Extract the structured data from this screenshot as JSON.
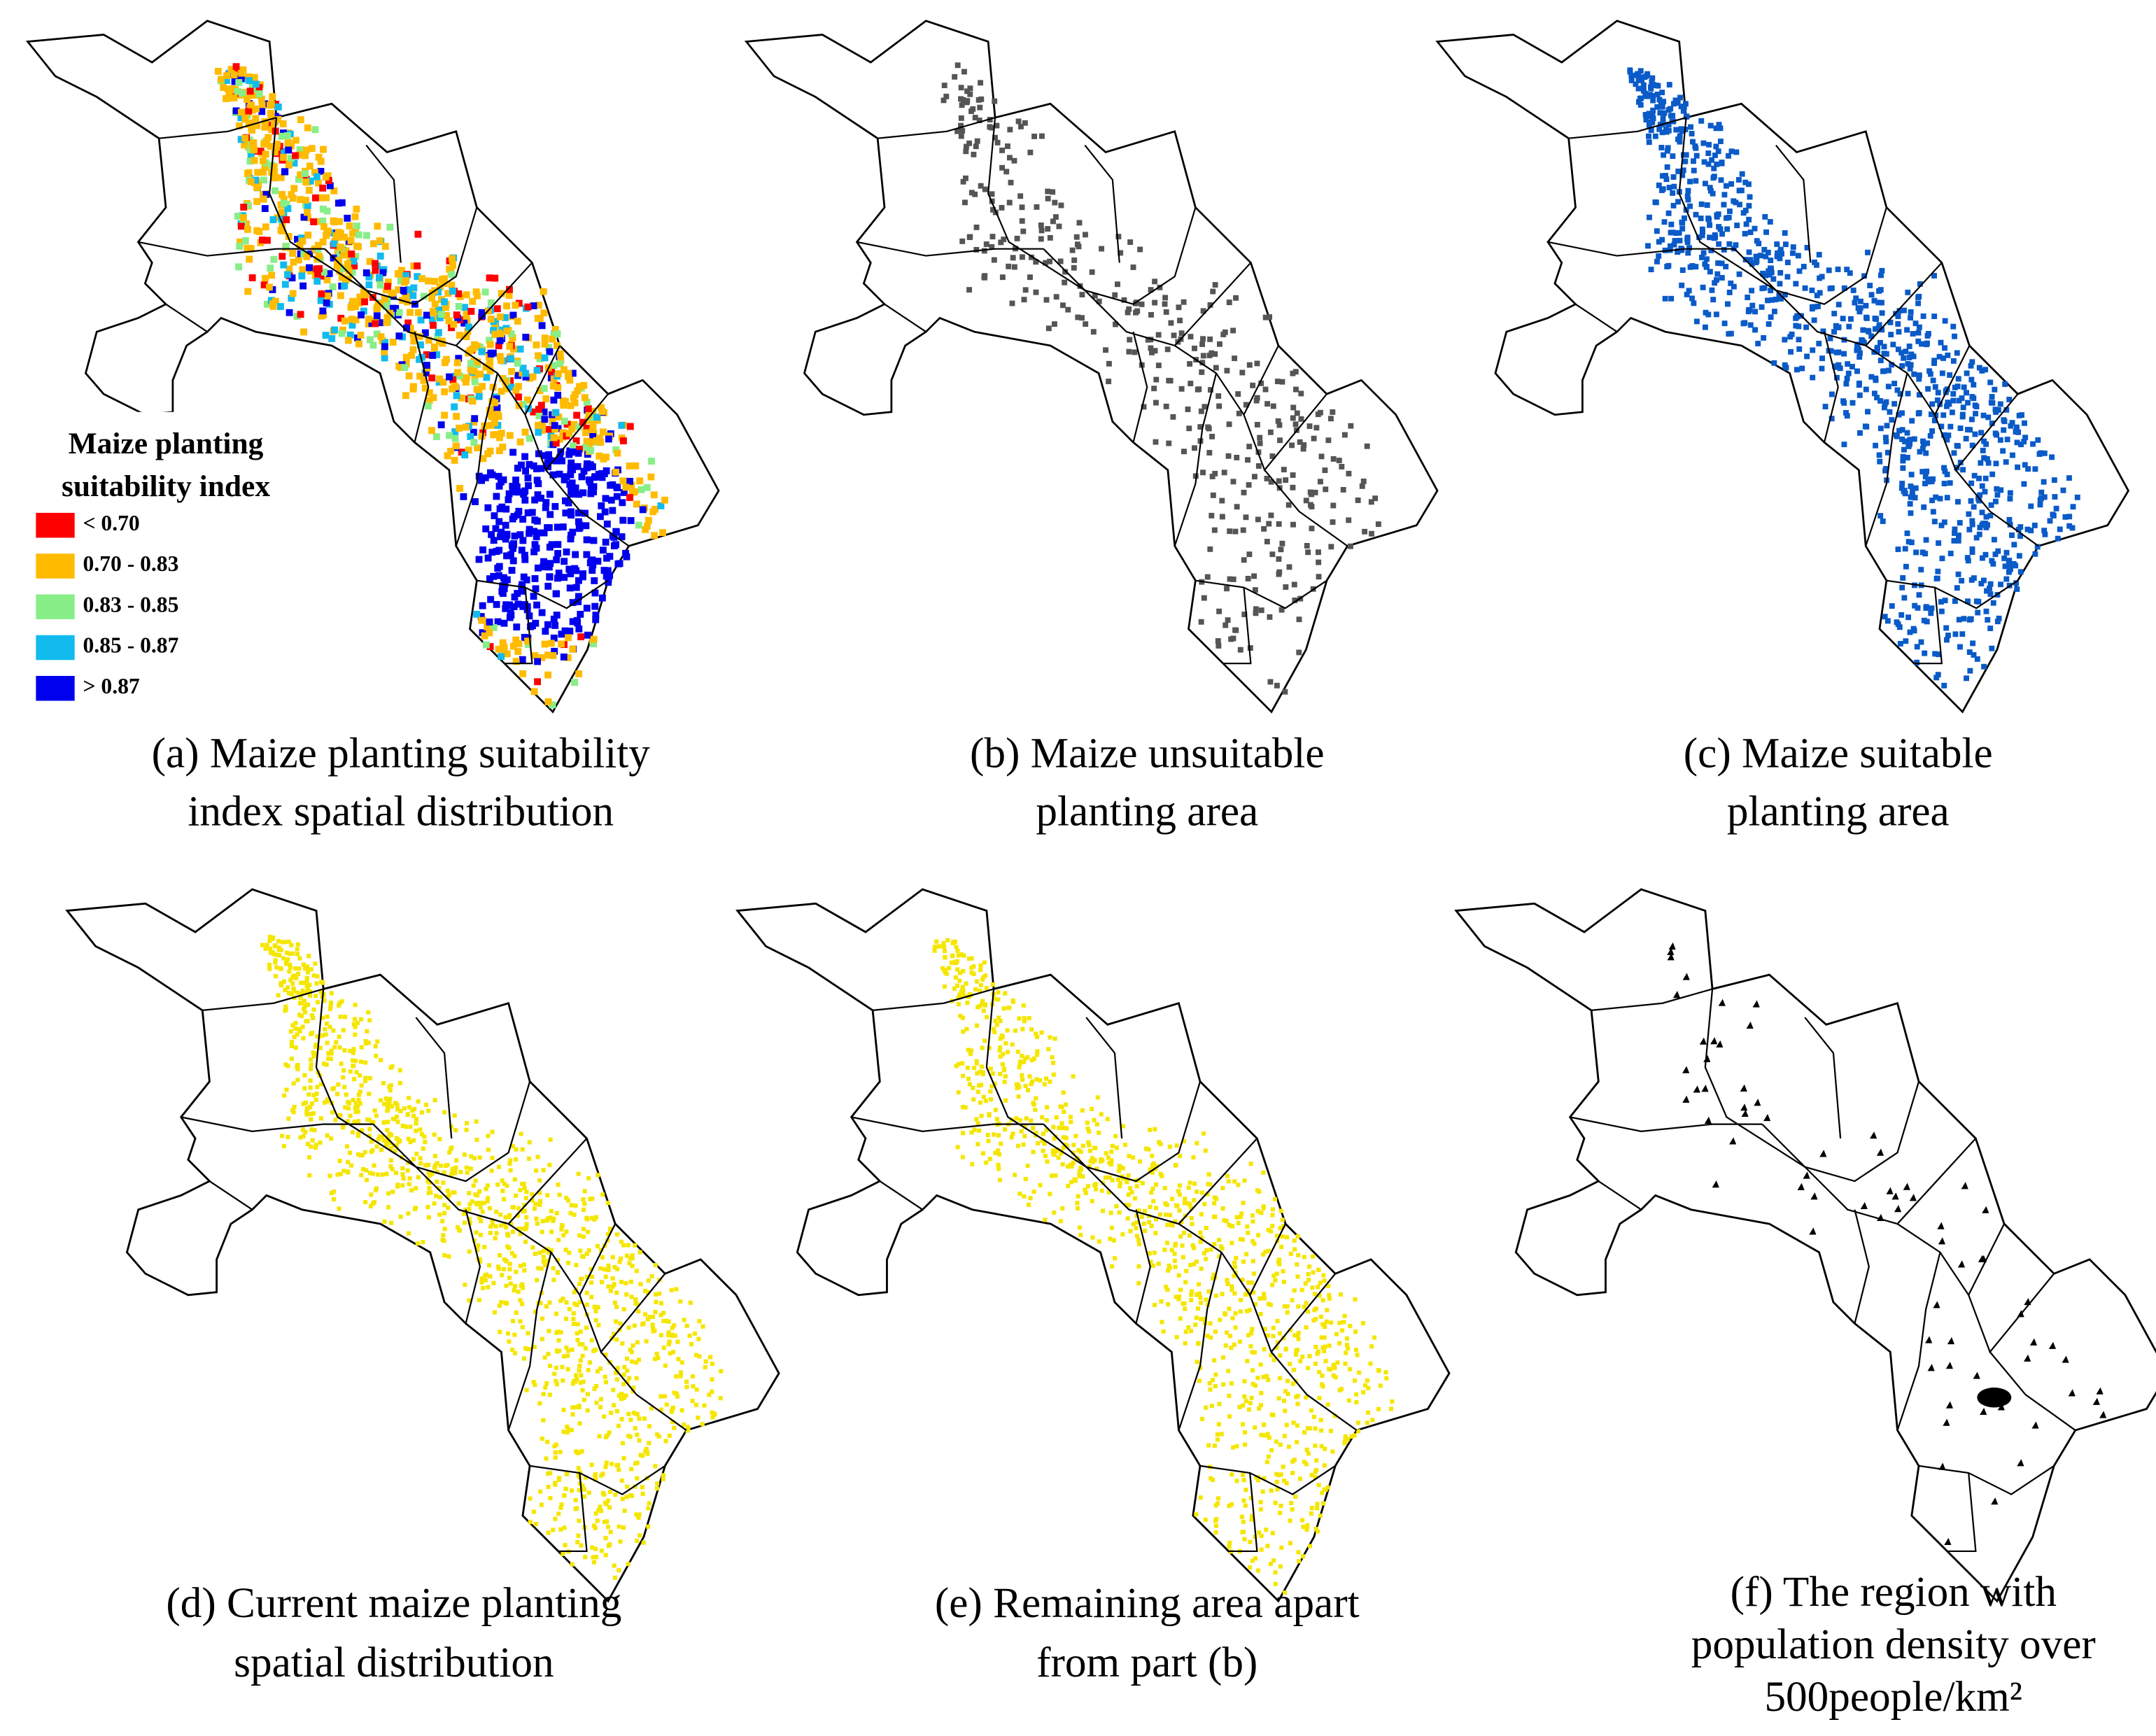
{
  "panels": [
    {
      "caption": [
        "(a) Maize planting suitability",
        "index spatial distribution"
      ]
    },
    {
      "caption": [
        "(b) Maize unsuitable",
        "planting area"
      ]
    },
    {
      "caption": [
        "(c) Maize suitable",
        "planting area"
      ]
    },
    {
      "caption": [
        "(d) Current maize planting",
        "spatial distribution"
      ]
    },
    {
      "caption": [
        "(e) Remaining area apart",
        "from part (b)"
      ]
    },
    {
      "caption": [
        "(f) The region with",
        "population density over",
        "500people/km²"
      ]
    }
  ],
  "legend": {
    "title": [
      "Maize planting",
      "suitability index"
    ],
    "items": [
      {
        "label": "< 0.70",
        "color": "#ff0000"
      },
      {
        "label": "0.70 - 0.83",
        "color": "#ffbb00"
      },
      {
        "label": "0.83 - 0.85",
        "color": "#88ee88"
      },
      {
        "label": "0.85 - 0.87",
        "color": "#11bbee"
      },
      {
        "label": "> 0.87",
        "color": "#0000ee"
      }
    ]
  }
}
